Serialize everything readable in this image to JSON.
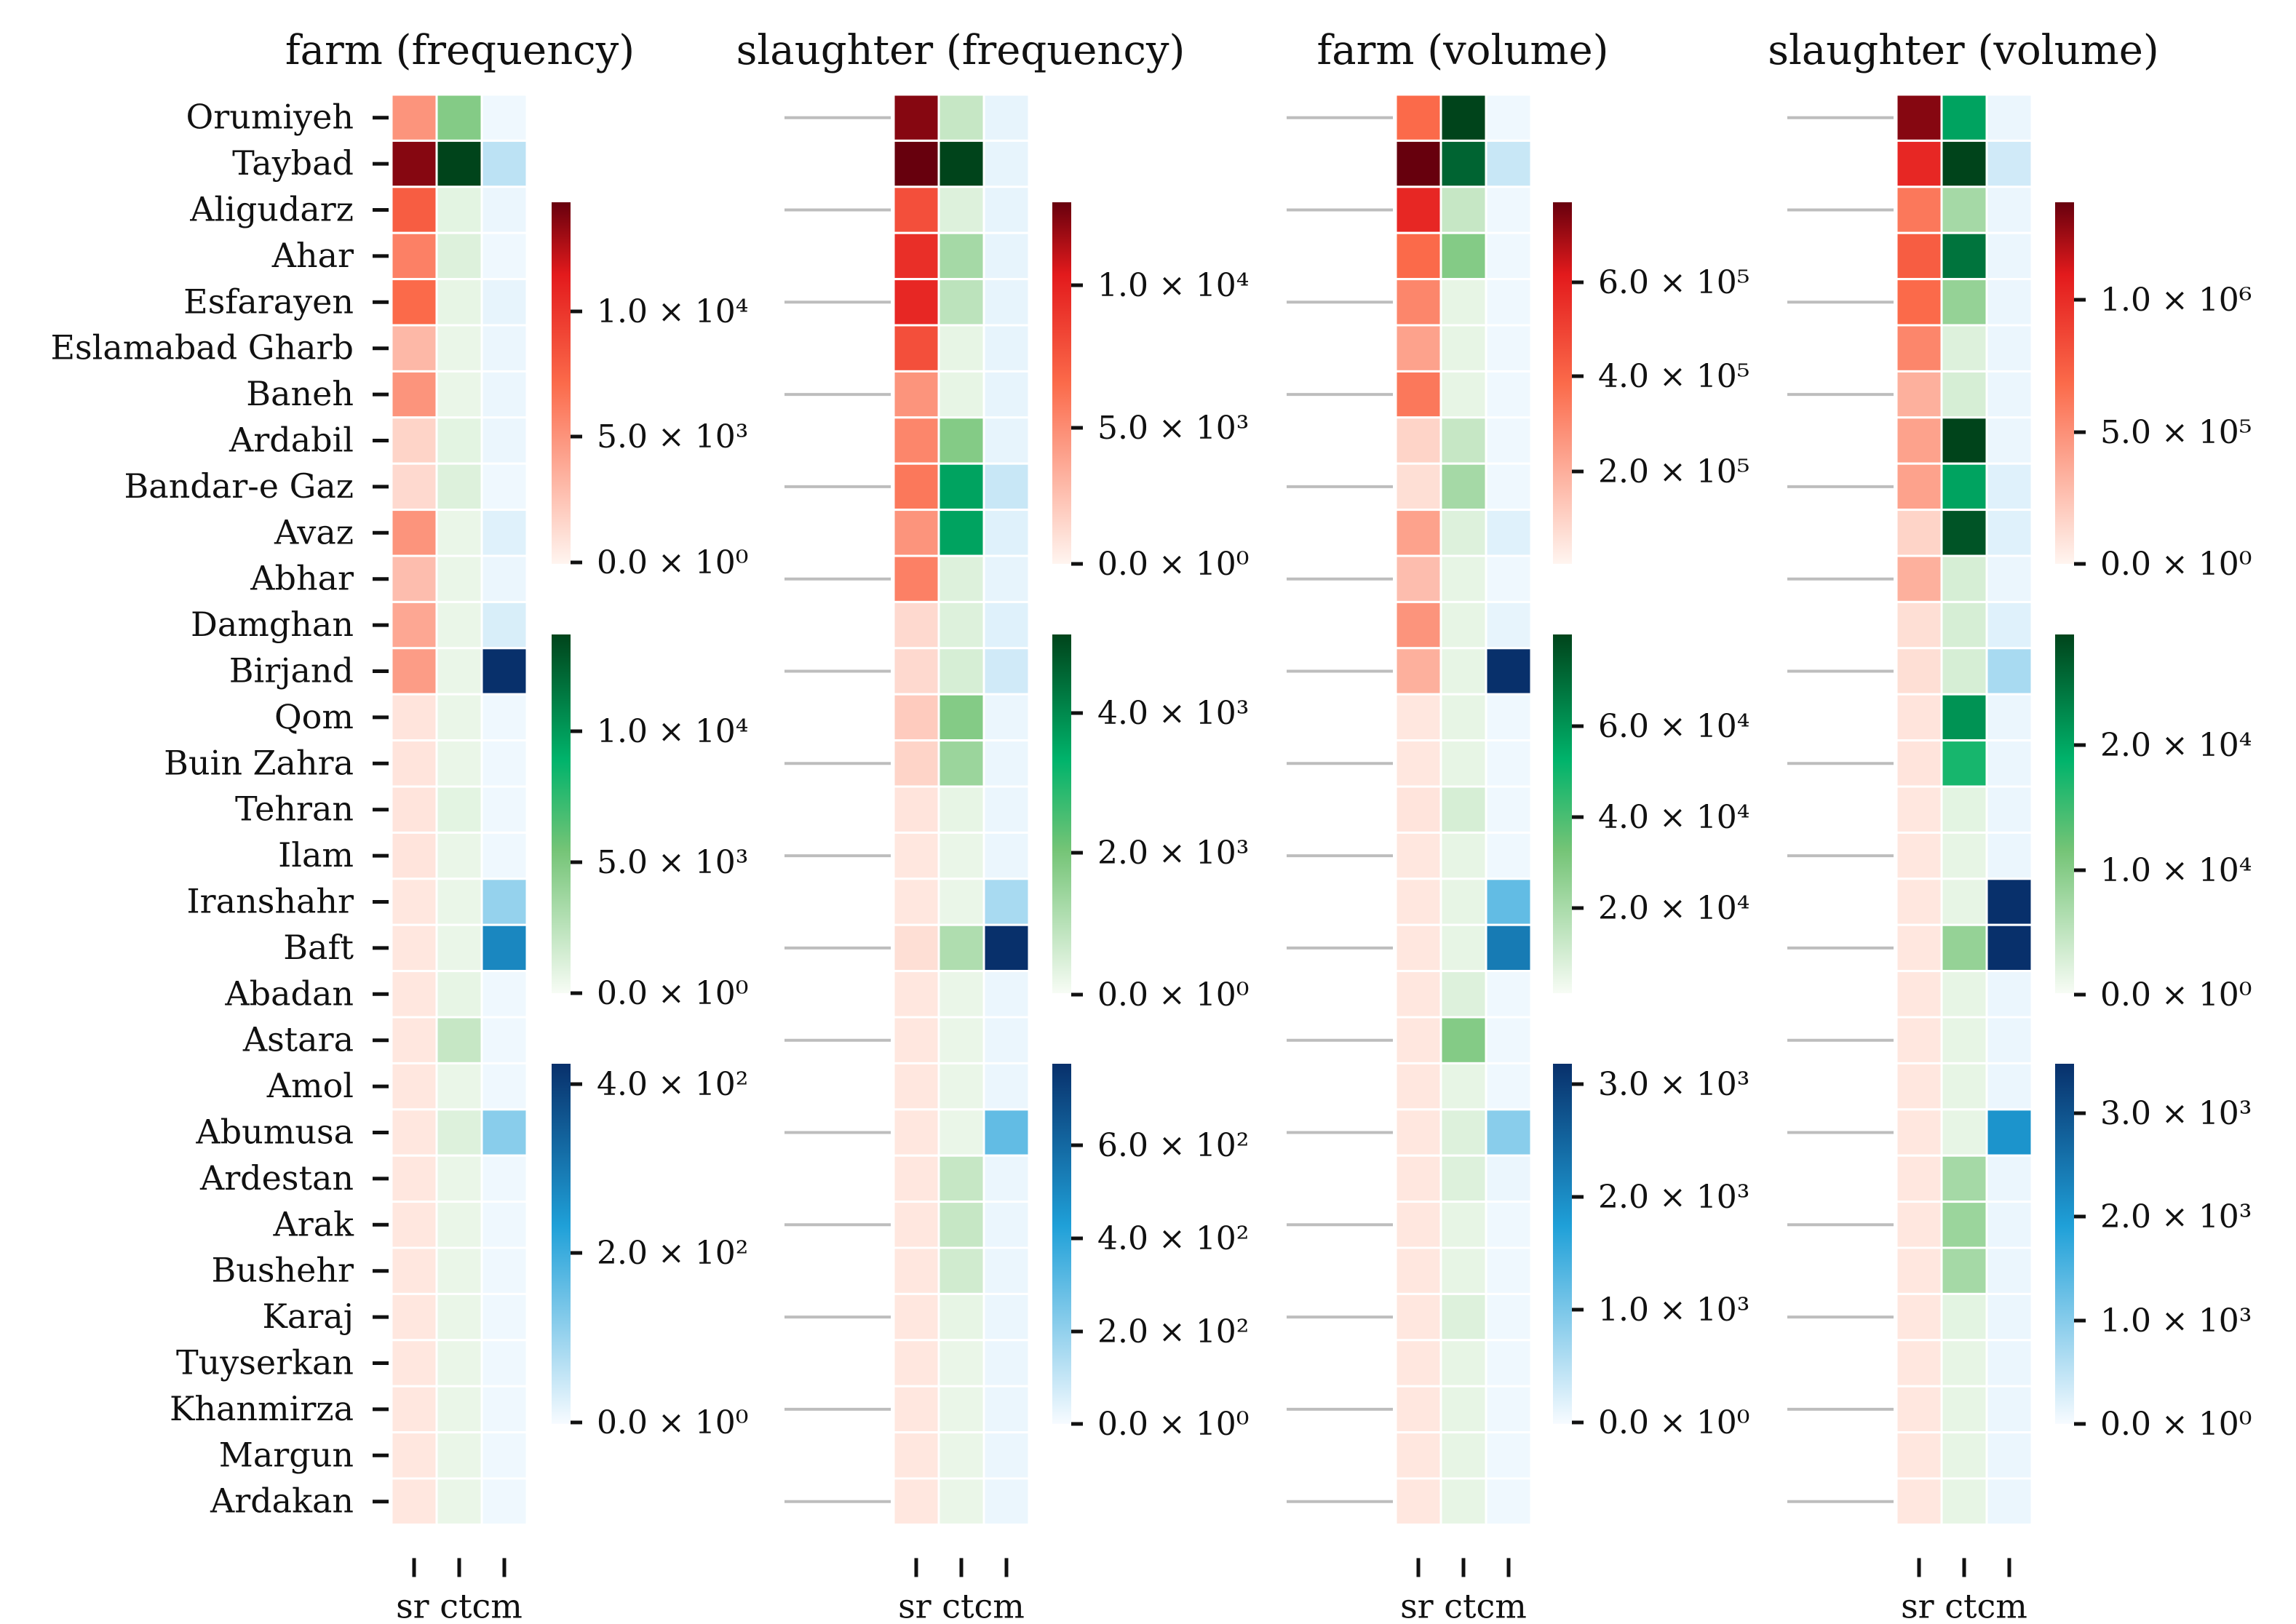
{
  "chart_data": {
    "type": "heatmap",
    "rows": [
      "Orumiyeh",
      "Taybad",
      "Aligudarz",
      "Ahar",
      "Esfarayen",
      "Eslamabad Gharb",
      "Baneh",
      "Ardabil",
      "Bandar-e Gaz",
      "Avaz",
      "Abhar",
      "Damghan",
      "Birjand",
      "Qom",
      "Buin Zahra",
      "Tehran",
      "Ilam",
      "Iranshahr",
      "Baft",
      "Abadan",
      "Astara",
      "Amol",
      "Abumusa",
      "Ardestan",
      "Arak",
      "Bushehr",
      "Karaj",
      "Tuyserkan",
      "Khanmirza",
      "Margun",
      "Ardakan"
    ],
    "columns": [
      "sr",
      "ct",
      "cm"
    ],
    "column_colormaps": {
      "sr": "Reds",
      "ct": "Greens",
      "cm": "Blues"
    },
    "panels": [
      {
        "title": "farm (frequency)",
        "sr": [
          0.35,
          0.95,
          0.55,
          0.42,
          0.5,
          0.22,
          0.35,
          0.12,
          0.1,
          0.35,
          0.2,
          0.28,
          0.32,
          0.06,
          0.06,
          0.06,
          0.06,
          0.05,
          0.05,
          0.05,
          0.05,
          0.05,
          0.05,
          0.05,
          0.05,
          0.05,
          0.05,
          0.05,
          0.05,
          0.05,
          0.05
        ],
        "ct": [
          0.35,
          1.0,
          0.06,
          0.08,
          0.05,
          0.04,
          0.04,
          0.06,
          0.08,
          0.04,
          0.04,
          0.04,
          0.04,
          0.04,
          0.04,
          0.06,
          0.04,
          0.04,
          0.04,
          0.05,
          0.15,
          0.04,
          0.08,
          0.04,
          0.04,
          0.04,
          0.04,
          0.04,
          0.04,
          0.04,
          0.04
        ],
        "cm": [
          0.02,
          0.15,
          0.03,
          0.02,
          0.04,
          0.03,
          0.03,
          0.03,
          0.02,
          0.06,
          0.03,
          0.08,
          1.0,
          0.02,
          0.02,
          0.02,
          0.02,
          0.25,
          0.65,
          0.02,
          0.02,
          0.02,
          0.28,
          0.02,
          0.02,
          0.02,
          0.02,
          0.02,
          0.02,
          0.02,
          0.02
        ],
        "colorbars": {
          "sr": [
            "0.0 × 10⁰",
            "5.0 × 10³",
            "1.0 × 10⁴"
          ],
          "ct": [
            "0.0 × 10⁰",
            "5.0 × 10³",
            "1.0 × 10⁴"
          ],
          "cm": [
            "0.0 × 10⁰",
            "2.0 × 10²",
            "4.0 × 10²"
          ]
        }
      },
      {
        "title": "slaughter (frequency)",
        "sr": [
          0.95,
          1.0,
          0.6,
          0.72,
          0.75,
          0.6,
          0.35,
          0.4,
          0.45,
          0.35,
          0.42,
          0.1,
          0.1,
          0.15,
          0.12,
          0.06,
          0.05,
          0.05,
          0.08,
          0.05,
          0.05,
          0.05,
          0.05,
          0.05,
          0.05,
          0.05,
          0.05,
          0.05,
          0.05,
          0.05,
          0.05
        ],
        "ct": [
          0.15,
          1.0,
          0.08,
          0.25,
          0.18,
          0.05,
          0.05,
          0.35,
          0.7,
          0.7,
          0.08,
          0.08,
          0.1,
          0.35,
          0.28,
          0.05,
          0.04,
          0.04,
          0.22,
          0.04,
          0.04,
          0.04,
          0.04,
          0.15,
          0.15,
          0.12,
          0.05,
          0.04,
          0.04,
          0.04,
          0.04
        ],
        "cm": [
          0.04,
          0.04,
          0.04,
          0.04,
          0.04,
          0.04,
          0.04,
          0.04,
          0.12,
          0.06,
          0.04,
          0.06,
          0.1,
          0.03,
          0.03,
          0.03,
          0.03,
          0.2,
          1.0,
          0.03,
          0.03,
          0.03,
          0.38,
          0.03,
          0.03,
          0.03,
          0.03,
          0.03,
          0.03,
          0.03,
          0.03
        ],
        "colorbars": {
          "sr": [
            "0.0 × 10⁰",
            "5.0 × 10³",
            "1.0 × 10⁴"
          ],
          "ct": [
            "0.0 × 10⁰",
            "2.0 × 10³",
            "4.0 × 10³"
          ],
          "cm": [
            "0.0 × 10⁰",
            "2.0 × 10²",
            "4.0 × 10²",
            "6.0 × 10²"
          ]
        }
      },
      {
        "title": "farm (volume)",
        "sr": [
          0.5,
          1.0,
          0.75,
          0.5,
          0.4,
          0.3,
          0.45,
          0.12,
          0.08,
          0.3,
          0.2,
          0.35,
          0.25,
          0.05,
          0.05,
          0.06,
          0.05,
          0.05,
          0.05,
          0.05,
          0.05,
          0.05,
          0.05,
          0.05,
          0.05,
          0.05,
          0.05,
          0.05,
          0.05,
          0.05,
          0.05
        ],
        "ct": [
          1.0,
          0.9,
          0.15,
          0.35,
          0.05,
          0.05,
          0.05,
          0.15,
          0.25,
          0.08,
          0.05,
          0.05,
          0.05,
          0.05,
          0.05,
          0.1,
          0.05,
          0.05,
          0.05,
          0.08,
          0.35,
          0.05,
          0.08,
          0.08,
          0.05,
          0.05,
          0.08,
          0.05,
          0.05,
          0.05,
          0.05
        ],
        "cm": [
          0.02,
          0.12,
          0.02,
          0.02,
          0.02,
          0.02,
          0.02,
          0.02,
          0.02,
          0.06,
          0.02,
          0.04,
          1.0,
          0.02,
          0.02,
          0.02,
          0.02,
          0.38,
          0.7,
          0.02,
          0.02,
          0.02,
          0.28,
          0.03,
          0.02,
          0.02,
          0.02,
          0.02,
          0.02,
          0.02,
          0.02
        ],
        "colorbars": {
          "sr": [
            "2.0 × 10⁵",
            "4.0 × 10⁵",
            "6.0 × 10⁵"
          ],
          "ct": [
            "2.0 × 10⁴",
            "4.0 × 10⁴",
            "6.0 × 10⁴"
          ],
          "cm": [
            "0.0 × 10⁰",
            "1.0 × 10³",
            "2.0 × 10³",
            "3.0 × 10³"
          ]
        }
      },
      {
        "title": "slaughter (volume)",
        "sr": [
          0.95,
          0.75,
          0.45,
          0.55,
          0.5,
          0.4,
          0.25,
          0.3,
          0.3,
          0.12,
          0.25,
          0.08,
          0.08,
          0.06,
          0.06,
          0.05,
          0.05,
          0.05,
          0.05,
          0.05,
          0.05,
          0.05,
          0.05,
          0.05,
          0.05,
          0.05,
          0.05,
          0.05,
          0.05,
          0.05,
          0.05
        ],
        "ct": [
          0.7,
          1.0,
          0.25,
          0.85,
          0.3,
          0.08,
          0.1,
          1.0,
          0.7,
          0.95,
          0.1,
          0.1,
          0.1,
          0.75,
          0.6,
          0.06,
          0.05,
          0.05,
          0.3,
          0.05,
          0.05,
          0.05,
          0.05,
          0.25,
          0.28,
          0.25,
          0.06,
          0.05,
          0.05,
          0.05,
          0.05
        ],
        "cm": [
          0.03,
          0.1,
          0.03,
          0.03,
          0.03,
          0.03,
          0.03,
          0.03,
          0.06,
          0.06,
          0.03,
          0.06,
          0.2,
          0.03,
          0.03,
          0.03,
          0.03,
          1.0,
          1.0,
          0.03,
          0.03,
          0.03,
          0.6,
          0.03,
          0.03,
          0.03,
          0.03,
          0.03,
          0.03,
          0.03,
          0.03
        ],
        "colorbars": {
          "sr": [
            "0.0 × 10⁰",
            "5.0 × 10⁵",
            "1.0 × 10⁶"
          ],
          "ct": [
            "0.0 × 10⁰",
            "1.0 × 10⁴",
            "2.0 × 10⁴"
          ],
          "cm": [
            "0.0 × 10⁰",
            "1.0 × 10³",
            "2.0 × 10³",
            "3.0 × 10³"
          ]
        }
      }
    ],
    "xlabel": "sr ctcm"
  }
}
